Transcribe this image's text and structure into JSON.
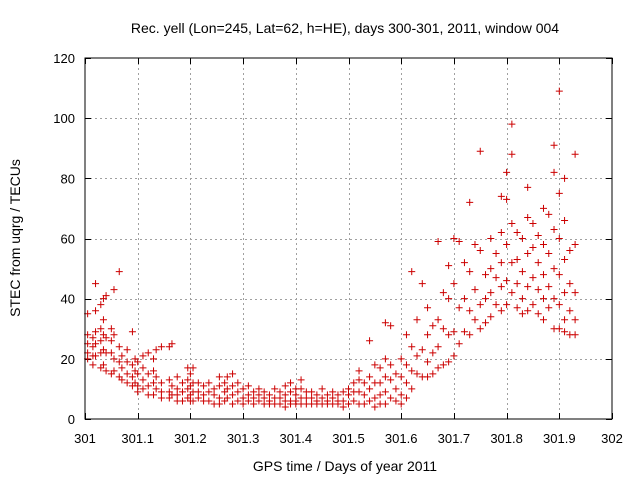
{
  "chart_data": {
    "type": "scatter",
    "title": "Rec. yell (Lon=245, Lat=62, h=HE), days 300-301, 2011, window 004",
    "xlabel": "GPS time / Days of year 2011",
    "ylabel": "STEC from uqrg / TECUs",
    "xlim": [
      301,
      302
    ],
    "ylim": [
      0,
      120
    ],
    "xticks": [
      301,
      301.1,
      301.2,
      301.3,
      301.4,
      301.5,
      301.6,
      301.7,
      301.8,
      301.9,
      302
    ],
    "xtick_labels": [
      "301",
      "301.1",
      "301.2",
      "301.3",
      "301.4",
      "301.5",
      "301.6",
      "301.7",
      "301.8",
      "301.9",
      "302"
    ],
    "yticks": [
      0,
      20,
      40,
      60,
      80,
      100,
      120
    ],
    "ytick_labels": [
      "0",
      "20",
      "40",
      "60",
      "80",
      "100",
      "120"
    ],
    "grid": true,
    "marker": "plus",
    "color": "#cc0000",
    "points": [
      [
        301.005,
        35
      ],
      [
        301.005,
        28
      ],
      [
        301.005,
        25
      ],
      [
        301.005,
        22
      ],
      [
        301.005,
        20
      ],
      [
        301.015,
        27
      ],
      [
        301.015,
        24
      ],
      [
        301.015,
        21
      ],
      [
        301.015,
        18
      ],
      [
        301.02,
        45
      ],
      [
        301.02,
        36
      ],
      [
        301.02,
        29
      ],
      [
        301.02,
        25
      ],
      [
        301.02,
        21
      ],
      [
        301.03,
        38
      ],
      [
        301.03,
        30
      ],
      [
        301.03,
        26
      ],
      [
        301.03,
        22
      ],
      [
        301.03,
        17
      ],
      [
        301.035,
        40
      ],
      [
        301.035,
        33
      ],
      [
        301.035,
        28
      ],
      [
        301.035,
        23
      ],
      [
        301.035,
        18
      ],
      [
        301.04,
        41
      ],
      [
        301.04,
        27
      ],
      [
        301.04,
        22
      ],
      [
        301.04,
        16
      ],
      [
        301.05,
        30
      ],
      [
        301.05,
        26
      ],
      [
        301.05,
        22
      ],
      [
        301.05,
        15
      ],
      [
        301.055,
        43
      ],
      [
        301.055,
        28
      ],
      [
        301.055,
        20
      ],
      [
        301.055,
        16
      ],
      [
        301.065,
        49
      ],
      [
        301.065,
        24
      ],
      [
        301.065,
        19
      ],
      [
        301.065,
        14
      ],
      [
        301.07,
        21
      ],
      [
        301.07,
        17
      ],
      [
        301.07,
        13
      ],
      [
        301.08,
        23
      ],
      [
        301.08,
        19
      ],
      [
        301.08,
        15
      ],
      [
        301.08,
        12
      ],
      [
        301.09,
        29
      ],
      [
        301.09,
        18
      ],
      [
        301.09,
        14
      ],
      [
        301.09,
        11
      ],
      [
        301.095,
        20
      ],
      [
        301.095,
        16
      ],
      [
        301.095,
        12
      ],
      [
        301.1,
        19
      ],
      [
        301.1,
        15
      ],
      [
        301.1,
        11
      ],
      [
        301.1,
        9
      ],
      [
        301.11,
        21
      ],
      [
        301.11,
        17
      ],
      [
        301.11,
        13
      ],
      [
        301.11,
        10
      ],
      [
        301.12,
        22
      ],
      [
        301.12,
        15
      ],
      [
        301.12,
        11
      ],
      [
        301.12,
        8
      ],
      [
        301.13,
        20
      ],
      [
        301.13,
        16
      ],
      [
        301.13,
        12
      ],
      [
        301.13,
        8
      ],
      [
        301.135,
        23
      ],
      [
        301.135,
        14
      ],
      [
        301.135,
        10
      ],
      [
        301.145,
        24
      ],
      [
        301.145,
        12
      ],
      [
        301.145,
        9
      ],
      [
        301.145,
        7
      ],
      [
        301.16,
        24
      ],
      [
        301.16,
        13
      ],
      [
        301.16,
        9
      ],
      [
        301.16,
        7
      ],
      [
        301.165,
        25
      ],
      [
        301.165,
        11
      ],
      [
        301.165,
        8
      ],
      [
        301.175,
        14
      ],
      [
        301.175,
        10
      ],
      [
        301.175,
        8
      ],
      [
        301.175,
        6
      ],
      [
        301.185,
        12
      ],
      [
        301.185,
        9
      ],
      [
        301.185,
        6
      ],
      [
        301.195,
        17
      ],
      [
        301.195,
        13
      ],
      [
        301.195,
        10
      ],
      [
        301.195,
        7
      ],
      [
        301.2,
        15
      ],
      [
        301.2,
        11
      ],
      [
        301.2,
        8
      ],
      [
        301.2,
        6
      ],
      [
        301.205,
        17
      ],
      [
        301.205,
        12
      ],
      [
        301.205,
        9
      ],
      [
        301.205,
        6
      ],
      [
        301.215,
        12
      ],
      [
        301.215,
        9
      ],
      [
        301.215,
        7
      ],
      [
        301.225,
        11
      ],
      [
        301.225,
        8
      ],
      [
        301.225,
        6
      ],
      [
        301.235,
        12
      ],
      [
        301.235,
        9
      ],
      [
        301.235,
        6
      ],
      [
        301.245,
        10
      ],
      [
        301.245,
        8
      ],
      [
        301.245,
        5
      ],
      [
        301.255,
        14
      ],
      [
        301.255,
        11
      ],
      [
        301.255,
        7
      ],
      [
        301.255,
        5
      ],
      [
        301.265,
        12
      ],
      [
        301.265,
        9
      ],
      [
        301.265,
        6
      ],
      [
        301.27,
        14
      ],
      [
        301.27,
        10
      ],
      [
        301.27,
        7
      ],
      [
        301.28,
        15
      ],
      [
        301.28,
        11
      ],
      [
        301.28,
        8
      ],
      [
        301.28,
        5
      ],
      [
        301.29,
        12
      ],
      [
        301.29,
        9
      ],
      [
        301.29,
        6
      ],
      [
        301.3,
        10
      ],
      [
        301.3,
        7
      ],
      [
        301.3,
        5
      ],
      [
        301.31,
        11
      ],
      [
        301.31,
        8
      ],
      [
        301.31,
        6
      ],
      [
        301.32,
        9
      ],
      [
        301.32,
        7
      ],
      [
        301.32,
        5
      ],
      [
        301.33,
        10
      ],
      [
        301.33,
        8
      ],
      [
        301.33,
        6
      ],
      [
        301.34,
        9
      ],
      [
        301.34,
        7
      ],
      [
        301.34,
        5
      ],
      [
        301.35,
        8
      ],
      [
        301.35,
        6
      ],
      [
        301.35,
        5
      ],
      [
        301.36,
        10
      ],
      [
        301.36,
        7
      ],
      [
        301.36,
        5
      ],
      [
        301.37,
        9
      ],
      [
        301.37,
        7
      ],
      [
        301.37,
        5
      ],
      [
        301.38,
        11
      ],
      [
        301.38,
        8
      ],
      [
        301.38,
        6
      ],
      [
        301.38,
        4
      ],
      [
        301.39,
        12
      ],
      [
        301.39,
        9
      ],
      [
        301.39,
        6
      ],
      [
        301.39,
        5
      ],
      [
        301.4,
        10
      ],
      [
        301.4,
        8
      ],
      [
        301.4,
        6
      ],
      [
        301.4,
        5
      ],
      [
        301.41,
        13
      ],
      [
        301.41,
        10
      ],
      [
        301.41,
        7
      ],
      [
        301.41,
        5
      ],
      [
        301.42,
        9
      ],
      [
        301.42,
        7
      ],
      [
        301.42,
        5
      ],
      [
        301.43,
        9
      ],
      [
        301.43,
        7
      ],
      [
        301.43,
        5
      ],
      [
        301.44,
        8
      ],
      [
        301.44,
        6
      ],
      [
        301.44,
        5
      ],
      [
        301.45,
        10
      ],
      [
        301.45,
        7
      ],
      [
        301.45,
        5
      ],
      [
        301.46,
        8
      ],
      [
        301.46,
        6
      ],
      [
        301.46,
        5
      ],
      [
        301.47,
        9
      ],
      [
        301.47,
        7
      ],
      [
        301.47,
        5
      ],
      [
        301.48,
        8
      ],
      [
        301.48,
        6
      ],
      [
        301.48,
        5
      ],
      [
        301.49,
        9
      ],
      [
        301.49,
        6
      ],
      [
        301.49,
        4
      ],
      [
        301.5,
        10
      ],
      [
        301.5,
        8
      ],
      [
        301.5,
        5
      ],
      [
        301.51,
        12
      ],
      [
        301.51,
        9
      ],
      [
        301.51,
        6
      ],
      [
        301.52,
        16
      ],
      [
        301.52,
        13
      ],
      [
        301.52,
        9
      ],
      [
        301.52,
        5
      ],
      [
        301.53,
        12
      ],
      [
        301.53,
        8
      ],
      [
        301.53,
        5
      ],
      [
        301.54,
        26
      ],
      [
        301.54,
        14
      ],
      [
        301.54,
        10
      ],
      [
        301.54,
        6
      ],
      [
        301.55,
        18
      ],
      [
        301.55,
        12
      ],
      [
        301.55,
        7
      ],
      [
        301.55,
        4
      ],
      [
        301.56,
        17
      ],
      [
        301.56,
        12
      ],
      [
        301.56,
        8
      ],
      [
        301.56,
        5
      ],
      [
        301.57,
        32
      ],
      [
        301.57,
        20
      ],
      [
        301.57,
        14
      ],
      [
        301.57,
        9
      ],
      [
        301.57,
        5
      ],
      [
        301.58,
        31
      ],
      [
        301.58,
        18
      ],
      [
        301.58,
        13
      ],
      [
        301.58,
        7
      ],
      [
        301.59,
        15
      ],
      [
        301.59,
        10
      ],
      [
        301.59,
        6
      ],
      [
        301.6,
        20
      ],
      [
        301.6,
        14
      ],
      [
        301.6,
        8
      ],
      [
        301.6,
        5
      ],
      [
        301.61,
        28
      ],
      [
        301.61,
        18
      ],
      [
        301.61,
        12
      ],
      [
        301.61,
        7
      ],
      [
        301.62,
        49
      ],
      [
        301.62,
        24
      ],
      [
        301.62,
        16
      ],
      [
        301.62,
        10
      ],
      [
        301.63,
        33
      ],
      [
        301.63,
        21
      ],
      [
        301.63,
        15
      ],
      [
        301.64,
        45
      ],
      [
        301.64,
        23
      ],
      [
        301.64,
        14
      ],
      [
        301.65,
        37
      ],
      [
        301.65,
        28
      ],
      [
        301.65,
        19
      ],
      [
        301.65,
        14
      ],
      [
        301.66,
        31
      ],
      [
        301.66,
        22
      ],
      [
        301.66,
        15
      ],
      [
        301.67,
        59
      ],
      [
        301.67,
        33
      ],
      [
        301.67,
        24
      ],
      [
        301.67,
        17
      ],
      [
        301.68,
        42
      ],
      [
        301.68,
        30
      ],
      [
        301.68,
        18
      ],
      [
        301.69,
        51
      ],
      [
        301.69,
        40
      ],
      [
        301.69,
        28
      ],
      [
        301.69,
        19
      ],
      [
        301.7,
        60
      ],
      [
        301.7,
        45
      ],
      [
        301.7,
        29
      ],
      [
        301.7,
        21
      ],
      [
        301.71,
        59
      ],
      [
        301.71,
        37
      ],
      [
        301.71,
        25
      ],
      [
        301.72,
        52
      ],
      [
        301.72,
        40
      ],
      [
        301.72,
        29
      ],
      [
        301.73,
        72
      ],
      [
        301.73,
        49
      ],
      [
        301.73,
        36
      ],
      [
        301.73,
        28
      ],
      [
        301.74,
        58
      ],
      [
        301.74,
        43
      ],
      [
        301.74,
        33
      ],
      [
        301.75,
        89
      ],
      [
        301.75,
        56
      ],
      [
        301.75,
        38
      ],
      [
        301.75,
        30
      ],
      [
        301.76,
        48
      ],
      [
        301.76,
        40
      ],
      [
        301.76,
        32
      ],
      [
        301.77,
        60
      ],
      [
        301.77,
        50
      ],
      [
        301.77,
        42
      ],
      [
        301.77,
        34
      ],
      [
        301.78,
        55
      ],
      [
        301.78,
        47
      ],
      [
        301.78,
        38
      ],
      [
        301.79,
        74
      ],
      [
        301.79,
        62
      ],
      [
        301.79,
        52
      ],
      [
        301.79,
        44
      ],
      [
        301.79,
        36
      ],
      [
        301.8,
        82
      ],
      [
        301.8,
        73
      ],
      [
        301.8,
        58
      ],
      [
        301.8,
        46
      ],
      [
        301.8,
        38
      ],
      [
        301.81,
        98
      ],
      [
        301.81,
        88
      ],
      [
        301.81,
        65
      ],
      [
        301.81,
        52
      ],
      [
        301.81,
        42
      ],
      [
        301.82,
        62
      ],
      [
        301.82,
        53
      ],
      [
        301.82,
        45
      ],
      [
        301.82,
        37
      ],
      [
        301.83,
        60
      ],
      [
        301.83,
        49
      ],
      [
        301.83,
        40
      ],
      [
        301.83,
        35
      ],
      [
        301.84,
        77
      ],
      [
        301.84,
        67
      ],
      [
        301.84,
        55
      ],
      [
        301.84,
        44
      ],
      [
        301.84,
        36
      ],
      [
        301.85,
        65
      ],
      [
        301.85,
        57
      ],
      [
        301.85,
        47
      ],
      [
        301.85,
        38
      ],
      [
        301.86,
        61
      ],
      [
        301.86,
        52
      ],
      [
        301.86,
        43
      ],
      [
        301.86,
        35
      ],
      [
        301.87,
        70
      ],
      [
        301.87,
        58
      ],
      [
        301.87,
        48
      ],
      [
        301.87,
        40
      ],
      [
        301.87,
        33
      ],
      [
        301.88,
        68
      ],
      [
        301.88,
        55
      ],
      [
        301.88,
        44
      ],
      [
        301.88,
        37
      ],
      [
        301.89,
        91
      ],
      [
        301.89,
        82
      ],
      [
        301.89,
        63
      ],
      [
        301.89,
        50
      ],
      [
        301.89,
        40
      ],
      [
        301.89,
        30
      ],
      [
        301.9,
        109
      ],
      [
        301.9,
        75
      ],
      [
        301.9,
        60
      ],
      [
        301.9,
        48
      ],
      [
        301.9,
        38
      ],
      [
        301.9,
        30
      ],
      [
        301.91,
        80
      ],
      [
        301.91,
        66
      ],
      [
        301.91,
        53
      ],
      [
        301.91,
        42
      ],
      [
        301.91,
        33
      ],
      [
        301.91,
        29
      ],
      [
        301.92,
        56
      ],
      [
        301.92,
        45
      ],
      [
        301.92,
        36
      ],
      [
        301.92,
        28
      ],
      [
        301.93,
        88
      ],
      [
        301.93,
        58
      ],
      [
        301.93,
        42
      ],
      [
        301.93,
        33
      ],
      [
        301.93,
        28
      ]
    ]
  }
}
